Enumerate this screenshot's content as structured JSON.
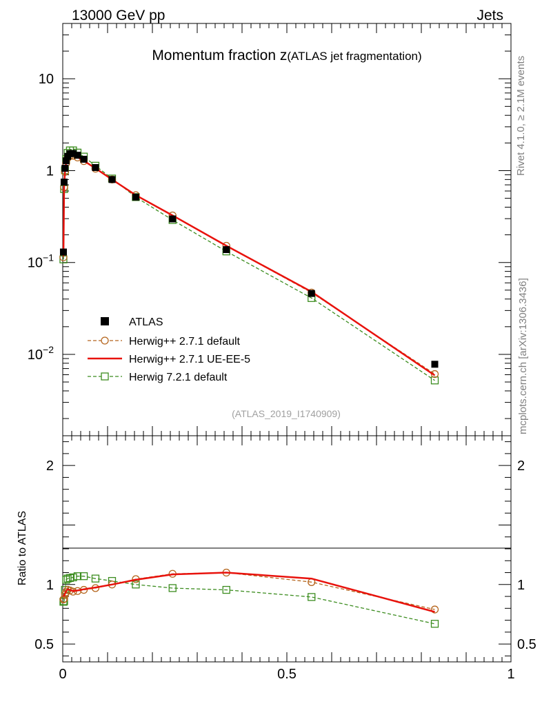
{
  "header": {
    "left": "13000 GeV pp",
    "right": "Jets"
  },
  "side_text": {
    "rivet": "Rivet 4.1.0, ≥ 2.1M events",
    "mcplots": "mcplots.cern.ch [arXiv:1306.3436]"
  },
  "chart_data": {
    "type": "line",
    "title_main": "Momentum fraction z",
    "title_sub": "(ATLAS jet fragmentation)",
    "analysis_tag": "(ATLAS_2019_I1740909)",
    "xlabel": "",
    "ylabel_ratio": "Ratio to ATLAS",
    "xlim": [
      0,
      1
    ],
    "ylim_main": [
      0.0013,
      40
    ],
    "ylim_ratio": [
      0.35,
      2.25
    ],
    "x_ticks": [
      {
        "value": 0,
        "label": "0"
      },
      {
        "value": 0.5,
        "label": "0.5"
      },
      {
        "value": 1,
        "label": "1"
      }
    ],
    "main_y_ticks": [
      {
        "value": 0.01,
        "base": "10",
        "exp": "−2"
      },
      {
        "value": 0.1,
        "base": "10",
        "exp": "−1"
      },
      {
        "value": 1,
        "base": "1",
        "exp": ""
      },
      {
        "value": 10,
        "base": "10",
        "exp": ""
      }
    ],
    "ratio_y_ticks": [
      {
        "value": 0.5,
        "label": "0.5"
      },
      {
        "value": 1,
        "label": "1"
      },
      {
        "value": 2,
        "label": "2"
      }
    ],
    "x": [
      0.0015,
      0.003,
      0.005,
      0.0075,
      0.011,
      0.016,
      0.023,
      0.033,
      0.047,
      0.073,
      0.11,
      0.163,
      0.245,
      0.365,
      0.555,
      0.83
    ],
    "data_values": [
      0.13,
      0.75,
      1.06,
      1.28,
      1.43,
      1.53,
      1.54,
      1.47,
      1.33,
      1.08,
      0.8,
      0.515,
      0.298,
      0.138,
      0.046,
      0.0078
    ],
    "legend": [
      {
        "name": "ATLAS"
      },
      {
        "name": "Herwig++ 2.7.1 default"
      },
      {
        "name": "Herwig++ 2.7.1 UE-EE-5"
      },
      {
        "name": "Herwig 7.2.1 default"
      }
    ],
    "series": [
      {
        "name": "Herwig++ 2.7.1 default",
        "color": "#b5651d",
        "marker": "circle",
        "style": "dashed",
        "values": [
          0.114,
          0.66,
          0.97,
          1.2,
          1.37,
          1.45,
          1.45,
          1.39,
          1.27,
          1.05,
          0.8,
          0.54,
          0.325,
          0.152,
          0.047,
          0.0061
        ],
        "ratio": [
          0.875,
          0.88,
          0.915,
          0.935,
          0.955,
          0.95,
          0.94,
          0.945,
          0.955,
          0.97,
          1.0,
          1.045,
          1.09,
          1.1,
          1.02,
          0.79
        ]
      },
      {
        "name": "Herwig++ 2.7.1 UE-EE-5",
        "color": "#e8120c",
        "marker": "none",
        "style": "solid",
        "values": [
          0.117,
          0.68,
          0.98,
          1.21,
          1.38,
          1.46,
          1.46,
          1.4,
          1.28,
          1.06,
          0.8,
          0.54,
          0.325,
          0.152,
          0.048,
          0.0059
        ],
        "ratio": [
          0.9,
          0.905,
          0.925,
          0.945,
          0.96,
          0.955,
          0.945,
          0.95,
          0.96,
          0.975,
          1.0,
          1.04,
          1.085,
          1.1,
          1.05,
          0.77
        ]
      },
      {
        "name": "Herwig 7.2.1 default",
        "color": "#3b8c1e",
        "marker": "square",
        "style": "dashed",
        "values": [
          0.108,
          0.63,
          1.01,
          1.33,
          1.56,
          1.66,
          1.66,
          1.57,
          1.42,
          1.13,
          0.82,
          0.515,
          0.29,
          0.132,
          0.041,
          0.0052
        ],
        "ratio": [
          0.855,
          0.86,
          0.955,
          1.04,
          1.05,
          1.055,
          1.06,
          1.07,
          1.07,
          1.05,
          1.03,
          1.0,
          0.97,
          0.955,
          0.895,
          0.67
        ]
      }
    ]
  }
}
